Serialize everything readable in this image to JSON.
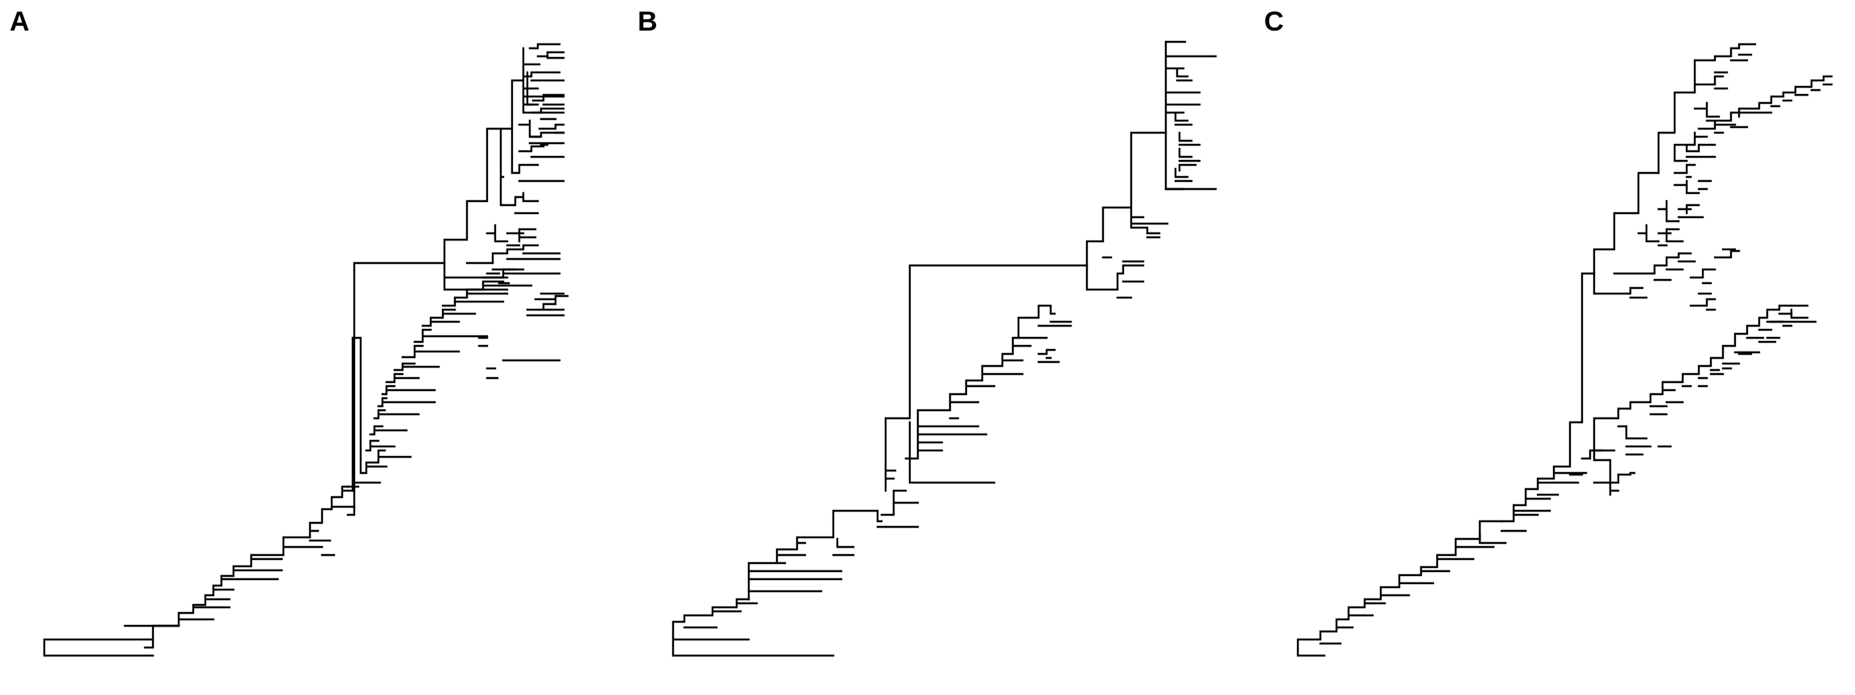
{
  "panels": [
    {
      "label": "A",
      "type": "phylogram"
    },
    {
      "label": "B",
      "type": "phylogram"
    },
    {
      "label": "C",
      "type": "phylogram"
    }
  ],
  "line_color": "#000000",
  "background_color": "#ffffff"
}
